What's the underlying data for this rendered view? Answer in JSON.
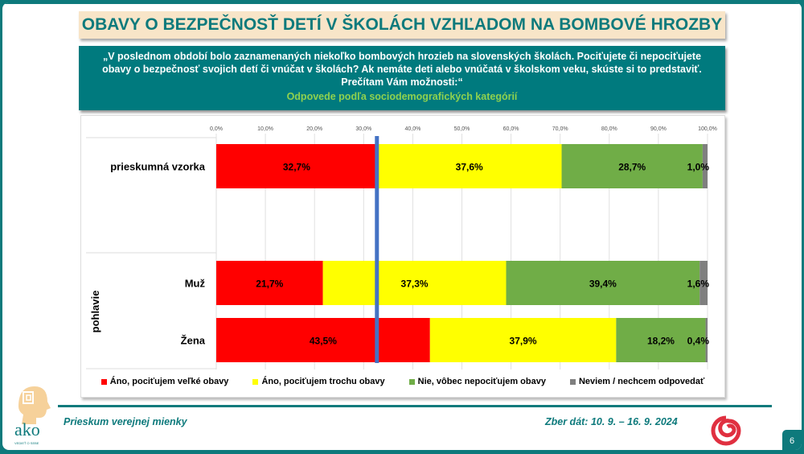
{
  "header": {
    "title": "OBAVY O BEZPEČNOSŤ DETÍ V ŠKOLÁCH VZHĽADOM NA BOMBOVÉ HROZBY"
  },
  "question": {
    "text": "„V poslednom období bolo zaznamenaných niekoľko bombových hrozieb na slovenských školách. Pociťujete či nepociťujete obavy o bezpečnosť svojich detí či vnúčat v školách? Ak nemáte deti alebo vnúčatá v školskom veku, skúste si to predstaviť. Prečítam Vám možnosti:“",
    "subtitle": "Odpovede podľa sociodemografických kategórií"
  },
  "chart_data": {
    "type": "bar",
    "orientation": "horizontal-stacked-100",
    "xlim": [
      0,
      100
    ],
    "x_ticks": [
      "0,0%",
      "10,0%",
      "20,0%",
      "30,0%",
      "40,0%",
      "50,0%",
      "60,0%",
      "70,0%",
      "80,0%",
      "90,0%",
      "100,0%"
    ],
    "categories": [
      "prieskumná vzorka",
      "Muž",
      "Žena"
    ],
    "group_label": "pohlavie",
    "reference_line": 32.7,
    "series": [
      {
        "name": "Áno, pociťujem veľké obavy",
        "color": "#ff0000",
        "values": [
          32.7,
          21.7,
          43.5
        ],
        "labels": [
          "32,7%",
          "21,7%",
          "43,5%"
        ]
      },
      {
        "name": "Áno, pociťujem trochu obavy",
        "color": "#ffff00",
        "values": [
          37.6,
          37.3,
          37.9
        ],
        "labels": [
          "37,6%",
          "37,3%",
          "37,9%"
        ]
      },
      {
        "name": "Nie, vôbec nepociťujem obavy",
        "color": "#70ad47",
        "values": [
          28.7,
          39.4,
          18.2
        ],
        "labels": [
          "28,7%",
          "39,4%",
          "18,2%"
        ]
      },
      {
        "name": "Neviem / nechcem odpovedať",
        "color": "#7f7f7f",
        "values": [
          1.0,
          1.6,
          0.4
        ],
        "labels": [
          "1,0%",
          "1,6%",
          "0,4%"
        ]
      }
    ],
    "legend_position": "bottom",
    "reference_line_color": "#4472c4"
  },
  "footer": {
    "survey": "Prieskum verejnej mienky",
    "date": "Zber dát: 10. 9. – 16. 9. 2024",
    "page": "6",
    "logo_text": "ako",
    "logo_tagline": "VEDIEŤ O SEBE"
  },
  "colors": {
    "teal": "#0e7a7c",
    "beige": "#f8e5c8"
  }
}
